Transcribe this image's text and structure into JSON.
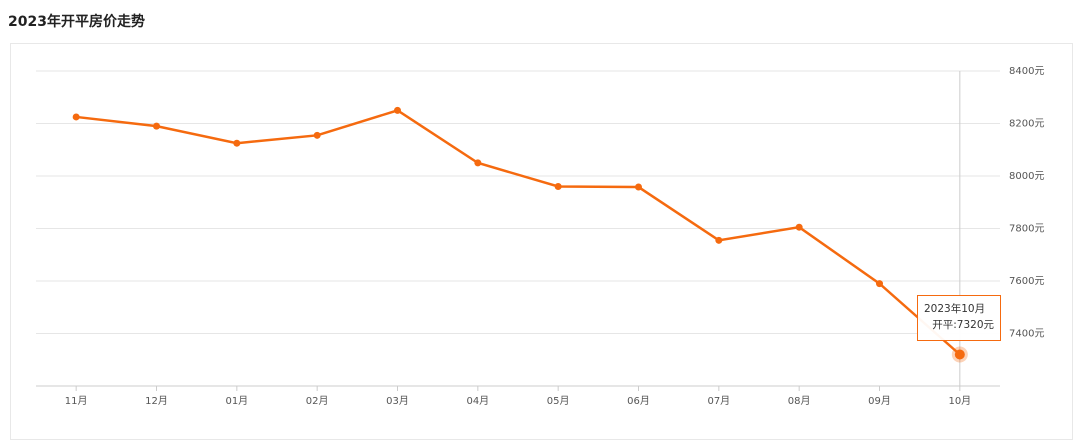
{
  "chart_data": {
    "type": "line",
    "title": "2023年开平房价走势",
    "categories": [
      "11月",
      "12月",
      "01月",
      "02月",
      "03月",
      "04月",
      "05月",
      "06月",
      "07月",
      "08月",
      "09月",
      "10月"
    ],
    "series": [
      {
        "name": "开平",
        "color": "#f56a0f",
        "values": [
          8225,
          8190,
          8125,
          8155,
          8250,
          8050,
          7960,
          7958,
          7755,
          7805,
          7590,
          7320
        ]
      }
    ],
    "ylim": [
      7200,
      8400
    ],
    "yticks": [
      {
        "value": 7400,
        "label": "7400元"
      },
      {
        "value": 7600,
        "label": "7600元"
      },
      {
        "value": 7800,
        "label": "7800元"
      },
      {
        "value": 8000,
        "label": "8000元"
      },
      {
        "value": 8200,
        "label": "8200元"
      },
      {
        "value": 8400,
        "label": "8400元"
      }
    ],
    "grid": true,
    "tooltip": {
      "index": 11,
      "title": "2023年10月",
      "label": "开平:7320元"
    }
  }
}
